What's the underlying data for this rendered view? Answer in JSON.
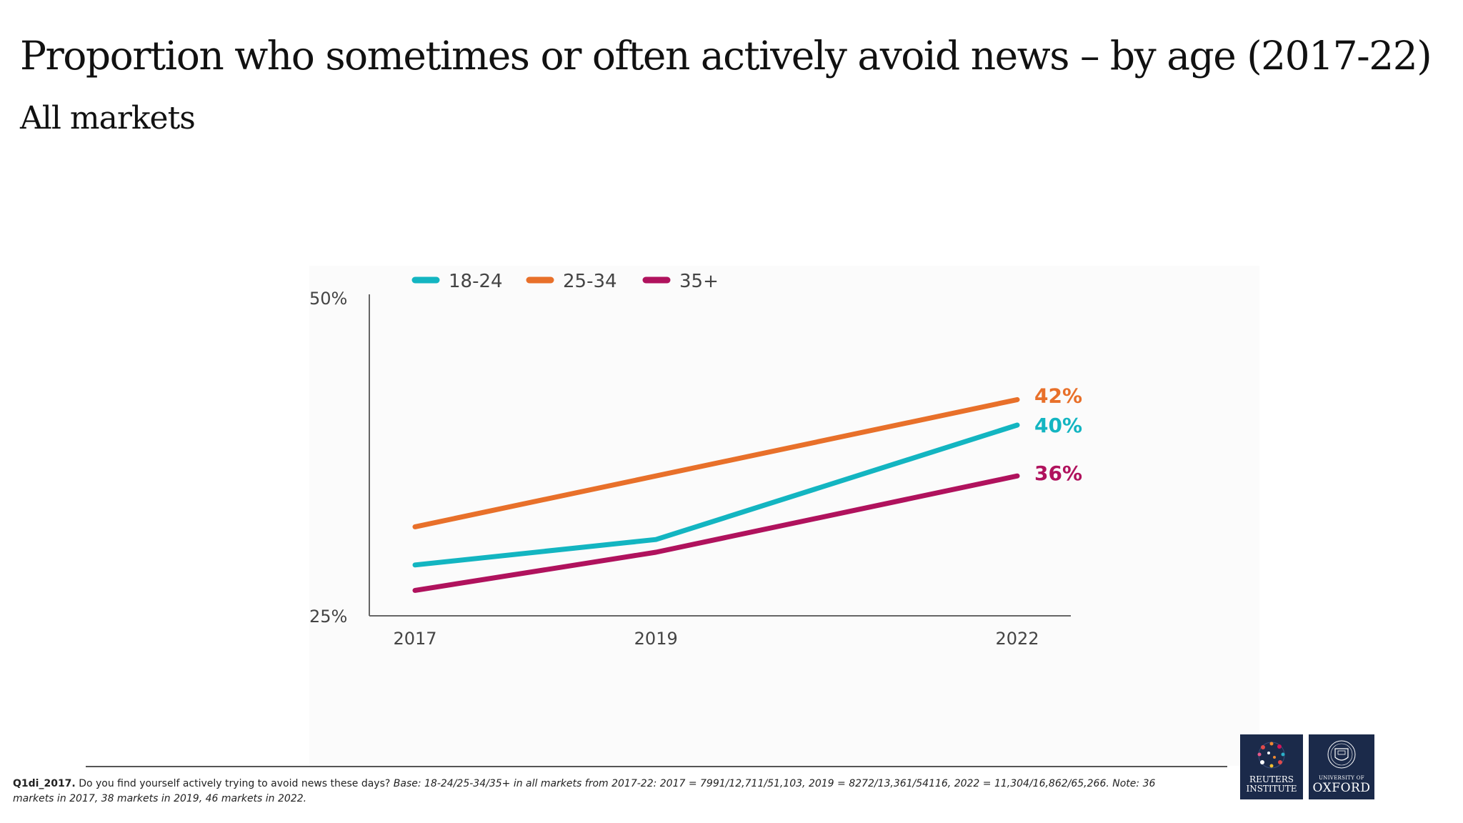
{
  "title": "Proportion who sometimes or often actively avoid news – by age (2017-22)",
  "subtitle": "All markets",
  "chart_data": {
    "type": "line",
    "x": [
      "2017",
      "2019",
      "2022"
    ],
    "x_positions": [
      2017,
      2019,
      2022
    ],
    "ylim": [
      25,
      50
    ],
    "y_tick_labels": [
      "50%",
      "25%"
    ],
    "y_ticks": [
      50,
      25
    ],
    "legend_position": "top-left",
    "series": [
      {
        "name": "18-24",
        "color": "#13b5c1",
        "values": [
          29,
          31,
          40
        ],
        "end_label": "40%"
      },
      {
        "name": "25-34",
        "color": "#e8702a",
        "values": [
          32,
          36,
          42
        ],
        "end_label": "42%"
      },
      {
        "name": "35+",
        "color": "#b0125d",
        "values": [
          27,
          30,
          36
        ],
        "end_label": "36%"
      }
    ]
  },
  "footnote": {
    "code": "Q1di_2017.",
    "question": " Do you find yourself actively trying to avoid news these days? ",
    "base": "Base: 18-24/25-34/35+ in all markets from 2017-22: 2017 = 7991/12,711/51,103, 2019 = 8272/13,361/54116, 2022 = 11,304/16,862/65,266. Note: 36 markets in 2017, 38 markets in 2019, 46 markets in 2022."
  },
  "logos": {
    "reuters_line1": "REUTERS",
    "reuters_line2": "INSTITUTE",
    "oxford_line1": "UNIVERSITY OF",
    "oxford_line2": "OXFORD"
  }
}
